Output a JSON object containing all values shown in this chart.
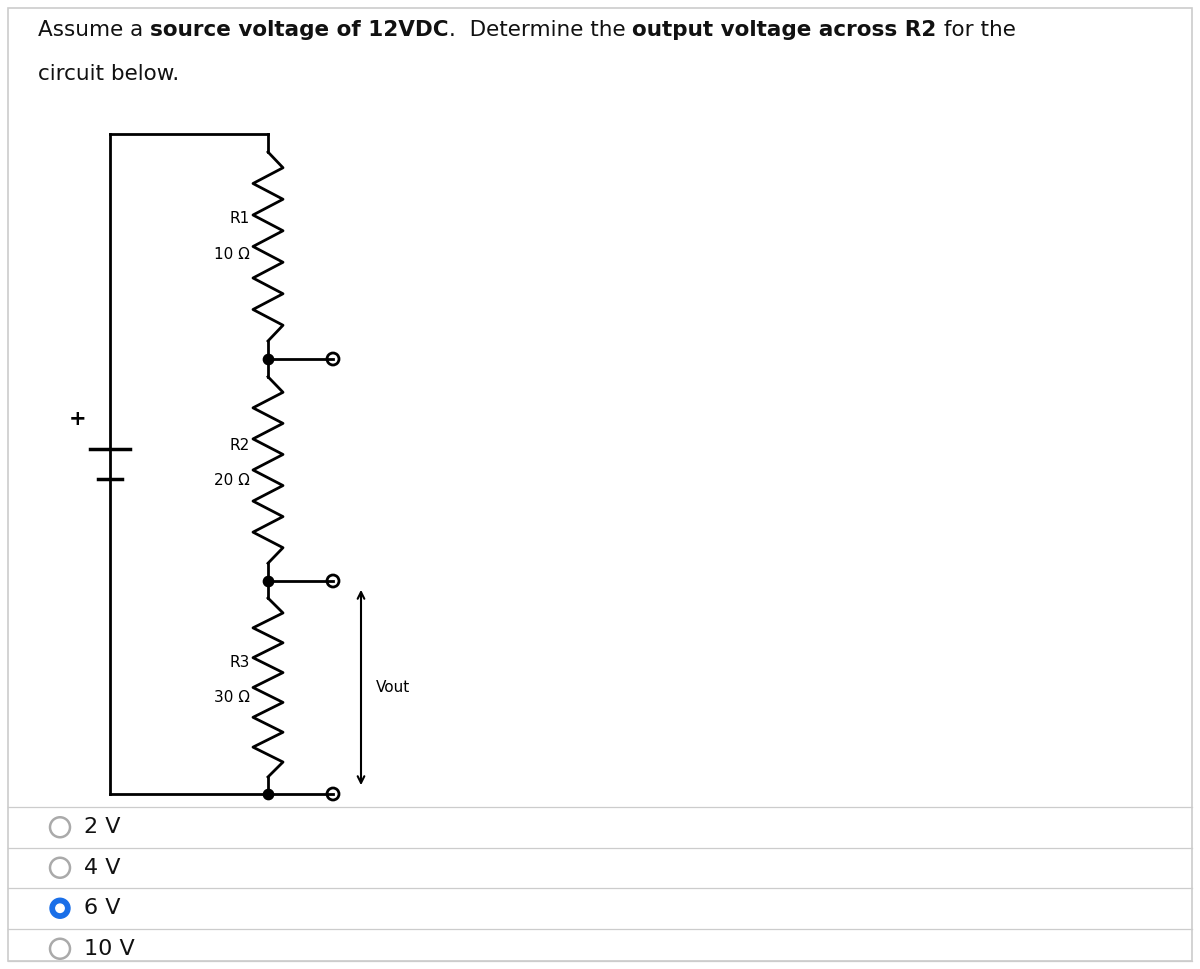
{
  "bg_color": "#ffffff",
  "border_color": "#cccccc",
  "circuit_color": "#000000",
  "title_line1_normal1": "Assume a ",
  "title_line1_bold1": "source voltage of 12VDC",
  "title_line1_normal2": ".  Determine the ",
  "title_line1_bold2": "output voltage across R2",
  "title_line1_normal3": " for the",
  "title_line2": "circuit below.",
  "options": [
    {
      "label": "2 V",
      "selected": false
    },
    {
      "label": "4 V",
      "selected": false
    },
    {
      "label": "6 V",
      "selected": true
    },
    {
      "label": "10 V",
      "selected": false
    }
  ],
  "selected_color": "#1a6fe8",
  "unselected_color": "#aaaaaa",
  "option_text_color": "#111111",
  "resistor_labels": [
    "R1",
    "R2",
    "R3"
  ],
  "resistor_values": [
    "10 Ω",
    "20 Ω",
    "30 Ω"
  ],
  "vout_label": "Vout",
  "title_fontsize": 15.5,
  "option_fontsize": 16,
  "circuit_fontsize": 11
}
